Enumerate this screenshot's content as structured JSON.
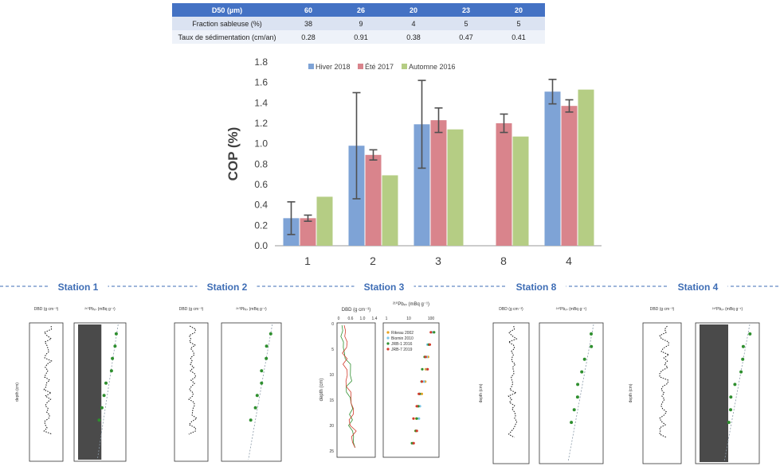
{
  "table": {
    "header": [
      "D50 (µm)",
      "60",
      "26",
      "20",
      "23",
      "20"
    ],
    "rows": [
      [
        "Fraction sableuse  (%)",
        "38",
        "9",
        "4",
        "5",
        "5"
      ],
      [
        "Taux de sédimentation (cm/an)",
        "0.28",
        "0.91",
        "0.38",
        "0.47",
        "0.41"
      ]
    ]
  },
  "chart_data": [
    {
      "type": "bar",
      "ylabel": "COP (%)",
      "xlabel": "",
      "ylim": [
        0,
        1.8
      ],
      "yticks": [
        "0.0",
        "0.2",
        "0.4",
        "0.6",
        "0.8",
        "1.0",
        "1.2",
        "1.4",
        "1.6",
        "1.8"
      ],
      "categories": [
        "1",
        "2",
        "3",
        "8",
        "4"
      ],
      "legend_position": "top",
      "grid": false,
      "series": [
        {
          "name": "Hiver 2018",
          "color": "#7ea3d6",
          "values": [
            0.27,
            0.98,
            1.19,
            null,
            1.51
          ],
          "err": [
            0.16,
            0.52,
            0.43,
            null,
            0.12
          ]
        },
        {
          "name": "Été 2017",
          "color": "#d9848c",
          "values": [
            0.27,
            0.89,
            1.23,
            1.2,
            1.37
          ],
          "err": [
            0.03,
            0.05,
            0.12,
            0.09,
            0.06
          ]
        },
        {
          "name": "Automne 2016",
          "color": "#b5cd84",
          "values": [
            0.48,
            0.69,
            1.14,
            1.07,
            1.53
          ],
          "err": [
            null,
            null,
            null,
            null,
            null
          ]
        }
      ]
    }
  ],
  "stations": [
    {
      "label": "Station 1",
      "dbd_label": "DBD (g cm⁻³)",
      "pb_label": "²¹⁰Pbₓₛ (mBq g⁻¹)",
      "depth_label": "depth (cm)"
    },
    {
      "label": "Station 2",
      "dbd_label": "DBD (g cm⁻³)",
      "pb_label": "²¹⁰Pbₓₛ (mBq g⁻¹)",
      "depth_label": ""
    },
    {
      "label": "Station 3",
      "dbd_label": "DBD (g cm⁻³)",
      "pb_label": "²¹⁰Pbₓₛ (mBq g⁻¹)",
      "depth_label": "depth (cm)"
    },
    {
      "label": "Station 8",
      "dbd_label": "DBD (g cm⁻³)",
      "pb_label": "²¹⁰Pbₓₛ (mBq g⁻¹)",
      "depth_label": "depth (cm)"
    },
    {
      "label": "Station 4",
      "dbd_label": "DBD (g cm⁻³)",
      "pb_label": "²¹⁰Pbₓₛ (mBq g⁻¹)",
      "depth_label": "depth (cm)"
    }
  ],
  "station3": {
    "dbd_ticks": [
      "0",
      "0.6",
      "1.0",
      "1.4"
    ],
    "pb_ticks": [
      "1",
      "10",
      "100"
    ],
    "depth_ticks": [
      "0",
      "5",
      "10",
      "15",
      "20",
      "25"
    ],
    "legend": [
      {
        "name": "Rikeau 2002",
        "color": "#e8a21e"
      },
      {
        "name": "Biomin 2010",
        "color": "#7cc6e6"
      },
      {
        "name": "JRB-1 2016",
        "color": "#2f8f2f"
      },
      {
        "name": "JRB-7 2019",
        "color": "#d23b2b"
      }
    ]
  }
}
